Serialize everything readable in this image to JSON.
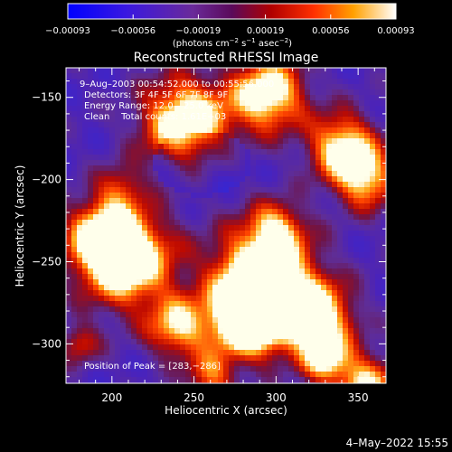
{
  "chart_data": {
    "type": "heatmap",
    "title": "Reconstructed RHESSI Image",
    "xlabel": "Heliocentric X (arcsec)",
    "ylabel": "Heliocentric Y (arcsec)",
    "xlim": [
      172,
      367
    ],
    "ylim": [
      -324,
      -132
    ],
    "x_ticks": [
      200,
      250,
      300,
      350
    ],
    "y_ticks": [
      -150,
      -200,
      -250,
      -300
    ],
    "x_tick_labels": [
      "200",
      "250",
      "300",
      "350"
    ],
    "y_tick_labels": [
      "−150",
      "−200",
      "−250",
      "−300"
    ],
    "colorbar": {
      "range": [
        -0.00093,
        0.00093
      ],
      "tick_values": [
        -0.00093,
        -0.00056,
        -0.00019,
        0.00019,
        0.00056,
        0.00093
      ],
      "tick_labels": [
        "−0.00093",
        "−0.00056",
        "−0.00019",
        "0.00019",
        "0.00056",
        "0.00093"
      ],
      "unit_base": "(photons cm",
      "unit_exp1": "−2",
      "unit_mid": " s",
      "unit_exp2": "−1",
      "unit_mid2": " asec",
      "unit_exp3": "−2",
      "unit_end": ")"
    },
    "annotations": {
      "time": "9–Aug–2003 00:54:52.000 to 00:55:56.000",
      "detectors": "Detectors: 3F 4F 5F 6F 7F 8F 9F",
      "energy": "Energy Range: 12.0 – 25.0 keV",
      "clean": "Clean    Total counts: 1.61E+03",
      "peak": "Position of Peak = [283,−286]"
    },
    "peak_position": [
      283,
      -286
    ],
    "timestamp": "4–May–2022 15:55"
  }
}
